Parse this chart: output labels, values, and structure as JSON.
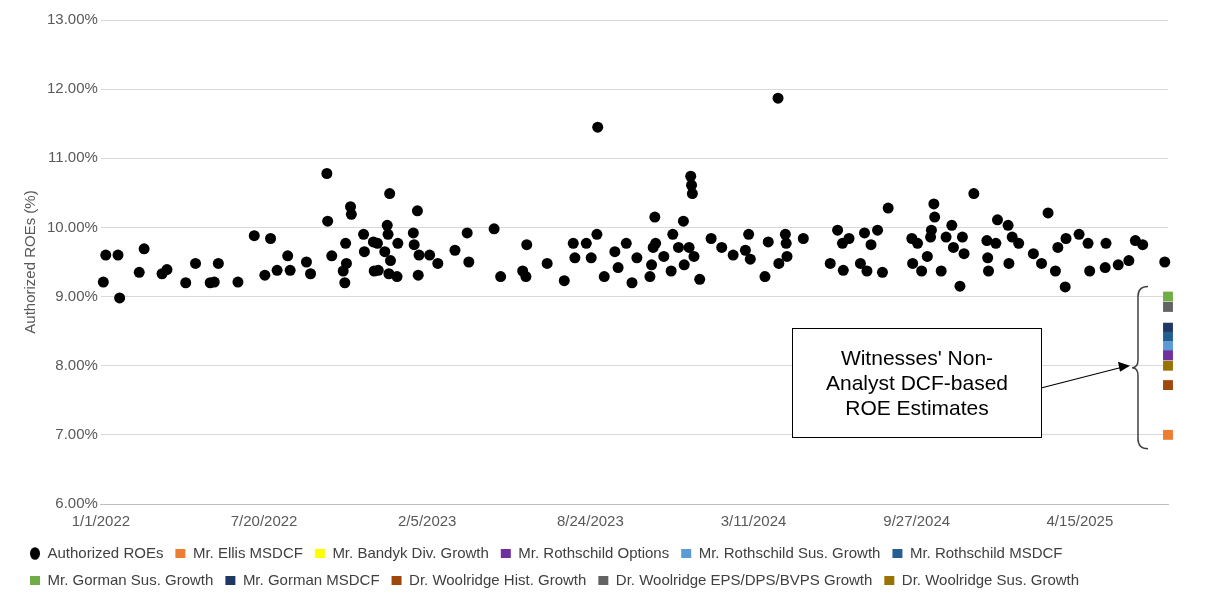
{
  "chart_data": {
    "type": "scatter",
    "ylabel": "Authorized ROEs (%)",
    "xlim": [
      "2022-01-01",
      "2025-08-01"
    ],
    "ylim": [
      6,
      13
    ],
    "xticks": [
      {
        "value": "2022-01-01",
        "label": "1/1/2022"
      },
      {
        "value": "2022-07-20",
        "label": "7/20/2022"
      },
      {
        "value": "2023-02-05",
        "label": "2/5/2023"
      },
      {
        "value": "2023-08-24",
        "label": "8/24/2023"
      },
      {
        "value": "2024-03-11",
        "label": "3/11/2024"
      },
      {
        "value": "2024-09-27",
        "label": "9/27/2024"
      },
      {
        "value": "2025-04-15",
        "label": "4/15/2025"
      }
    ],
    "yticks": [
      {
        "value": 6,
        "label": "6.00%"
      },
      {
        "value": 7,
        "label": "7.00%"
      },
      {
        "value": 8,
        "label": "8.00%"
      },
      {
        "value": 9,
        "label": "9.00%"
      },
      {
        "value": 10,
        "label": "10.00%"
      },
      {
        "value": 11,
        "label": "11.00%"
      },
      {
        "value": 12,
        "label": "12.00%"
      },
      {
        "value": 13,
        "label": "13.00%"
      }
    ],
    "grid": "y",
    "legend": "bottom",
    "annotations": [
      "Witnesses' Non-Analyst DCF-based ROE Estimates"
    ],
    "series": [
      {
        "name": "Authorized ROEs",
        "color": "#000000",
        "marker": "circle",
        "x": [
          "2022-01-04",
          "2022-01-07",
          "2022-01-22",
          "2022-01-24",
          "2022-02-17",
          "2022-02-23",
          "2022-03-17",
          "2022-03-23",
          "2022-04-15",
          "2022-04-27",
          "2022-05-15",
          "2022-05-20",
          "2022-05-25",
          "2022-06-18",
          "2022-07-08",
          "2022-07-21",
          "2022-07-28",
          "2022-08-05",
          "2022-08-18",
          "2022-08-21",
          "2022-09-10",
          "2022-09-15",
          "2022-10-05",
          "2022-10-06",
          "2022-10-11",
          "2022-10-25",
          "2022-10-27",
          "2022-10-28",
          "2022-10-29",
          "2022-11-03",
          "2022-11-04",
          "2022-11-19",
          "2022-11-20",
          "2022-12-01",
          "2022-12-02",
          "2022-12-06",
          "2022-12-07",
          "2022-12-15",
          "2022-12-18",
          "2022-12-19",
          "2022-12-20",
          "2022-12-21",
          "2022-12-22",
          "2022-12-31",
          "2022-12-30",
          "2023-01-19",
          "2023-01-20",
          "2023-01-24",
          "2023-01-25",
          "2023-01-26",
          "2023-02-08",
          "2023-02-18",
          "2023-03-11",
          "2023-03-26",
          "2023-03-28",
          "2023-04-28",
          "2023-05-06",
          "2023-06-02",
          "2023-06-06",
          "2023-06-07",
          "2023-07-02",
          "2023-07-23",
          "2023-08-03",
          "2023-08-05",
          "2023-08-19",
          "2023-08-25",
          "2023-09-02",
          "2023-09-01",
          "2023-09-10",
          "2023-09-23",
          "2023-09-27",
          "2023-10-07",
          "2023-10-14",
          "2023-10-20",
          "2023-11-05",
          "2023-11-07",
          "2023-11-09",
          "2023-11-11",
          "2023-11-12",
          "2023-11-22",
          "2023-12-01",
          "2023-12-03",
          "2023-12-10",
          "2023-12-16",
          "2023-12-17",
          "2023-12-23",
          "2023-12-25",
          "2023-12-26",
          "2023-12-27",
          "2023-12-29",
          "2024-01-05",
          "2024-01-19",
          "2024-02-01",
          "2024-02-15",
          "2024-03-01",
          "2024-03-05",
          "2024-03-07",
          "2024-03-25",
          "2024-03-29",
          "2024-04-10",
          "2024-04-11",
          "2024-04-19",
          "2024-04-20",
          "2024-04-21",
          "2024-05-11",
          "2024-06-13",
          "2024-06-22",
          "2024-06-28",
          "2024-06-29",
          "2024-07-06",
          "2024-07-20",
          "2024-07-25",
          "2024-07-28",
          "2024-08-02",
          "2024-08-10",
          "2024-08-16",
          "2024-08-23",
          "2024-09-21",
          "2024-09-22",
          "2024-09-28",
          "2024-10-03",
          "2024-10-10",
          "2024-10-14",
          "2024-10-15",
          "2024-10-18",
          "2024-10-19",
          "2024-10-27",
          "2024-11-02",
          "2024-11-09",
          "2024-11-11",
          "2024-11-19",
          "2024-11-22",
          "2024-11-24",
          "2024-12-06",
          "2024-12-22",
          "2024-12-23",
          "2024-12-24",
          "2025-01-02",
          "2025-01-04",
          "2025-01-17",
          "2025-01-18",
          "2025-01-22",
          "2025-01-30",
          "2025-02-17",
          "2025-02-27",
          "2025-03-07",
          "2025-03-16",
          "2025-03-19",
          "2025-03-28",
          "2025-03-29",
          "2025-04-14",
          "2025-04-25",
          "2025-04-27",
          "2025-05-16",
          "2025-05-17",
          "2025-06-01",
          "2025-06-14",
          "2025-06-22",
          "2025-07-01",
          "2025-07-28"
        ],
        "values": [
          9.21,
          9.6,
          9.6,
          8.98,
          9.35,
          9.69,
          9.33,
          9.39,
          9.2,
          9.48,
          9.2,
          9.21,
          9.48,
          9.21,
          9.88,
          9.31,
          9.84,
          9.38,
          9.59,
          9.38,
          9.5,
          9.33,
          10.78,
          10.09,
          9.59,
          9.37,
          9.2,
          9.77,
          9.48,
          10.3,
          10.19,
          9.9,
          9.65,
          9.79,
          9.37,
          9.77,
          9.38,
          9.65,
          10.03,
          9.9,
          9.33,
          10.49,
          9.52,
          9.77,
          9.29,
          9.92,
          9.75,
          10.24,
          9.31,
          9.6,
          9.6,
          9.48,
          9.67,
          9.92,
          9.5,
          9.98,
          9.29,
          9.37,
          9.29,
          9.75,
          9.48,
          9.23,
          9.77,
          9.56,
          9.77,
          9.56,
          11.45,
          9.9,
          9.29,
          9.65,
          9.42,
          9.77,
          9.2,
          9.56,
          9.29,
          9.46,
          9.71,
          10.15,
          9.77,
          9.58,
          9.37,
          9.9,
          9.71,
          10.09,
          9.46,
          9.71,
          10.74,
          10.61,
          10.49,
          9.58,
          9.25,
          9.84,
          9.71,
          9.6,
          9.67,
          9.9,
          9.54,
          9.29,
          9.79,
          11.87,
          9.48,
          9.9,
          9.77,
          9.58,
          9.84,
          9.48,
          9.96,
          9.77,
          9.38,
          9.84,
          9.48,
          9.92,
          9.37,
          9.75,
          9.96,
          9.35,
          10.28,
          9.84,
          9.48,
          9.77,
          9.37,
          9.58,
          9.86,
          9.96,
          10.34,
          10.15,
          9.37,
          9.86,
          10.03,
          9.71,
          9.15,
          9.86,
          9.62,
          10.49,
          9.81,
          9.56,
          9.37,
          9.77,
          10.11,
          10.03,
          9.48,
          9.86,
          9.77,
          9.62,
          9.48,
          10.21,
          9.37,
          9.71,
          9.14,
          9.84,
          9.9,
          9.77,
          9.37,
          9.42,
          9.77,
          9.46,
          9.52,
          9.81,
          9.75,
          9.5
        ]
      },
      {
        "name": "Mr. Ellis MSDCF",
        "color": "#ed7d31",
        "marker": "square",
        "x": [
          "2025-08-01"
        ],
        "values": [
          7.0
        ]
      },
      {
        "name": "Mr. Bandyk Div. Growth",
        "color": "#ffff00",
        "marker": "square"
      },
      {
        "name": "Mr. Rothschild Options",
        "color": "#7030a0",
        "marker": "square",
        "x": [
          "2025-08-01"
        ],
        "values": [
          8.15
        ]
      },
      {
        "name": "Mr. Rothschild Sus. Growth",
        "color": "#5b9bd5",
        "marker": "square",
        "x": [
          "2025-08-01"
        ],
        "values": [
          8.28
        ]
      },
      {
        "name": "Mr. Rothschild MSDCF",
        "color": "#255e91",
        "marker": "square",
        "x": [
          "2025-08-01"
        ],
        "values": [
          8.42
        ]
      },
      {
        "name": "Mr. Gorman Sus. Growth",
        "color": "#70ad47",
        "marker": "square",
        "x": [
          "2025-08-01"
        ],
        "values": [
          9.0
        ]
      },
      {
        "name": "Mr. Gorman MSDCF",
        "color": "#1f3864",
        "marker": "square",
        "x": [
          "2025-08-01"
        ],
        "values": [
          8.55
        ]
      },
      {
        "name": "Dr. Woolridge Hist. Growth",
        "color": "#9e480e",
        "marker": "square",
        "x": [
          "2025-08-01"
        ],
        "values": [
          7.72
        ]
      },
      {
        "name": "Dr. Woolridge EPS/DPS/BVPS Growth",
        "color": "#636363",
        "marker": "square",
        "x": [
          "2025-08-01"
        ],
        "values": [
          8.85
        ]
      },
      {
        "name": "Dr. Woolridge Sus. Growth",
        "color": "#997300",
        "marker": "square",
        "x": [
          "2025-08-01"
        ],
        "values": [
          8.0
        ]
      }
    ]
  }
}
